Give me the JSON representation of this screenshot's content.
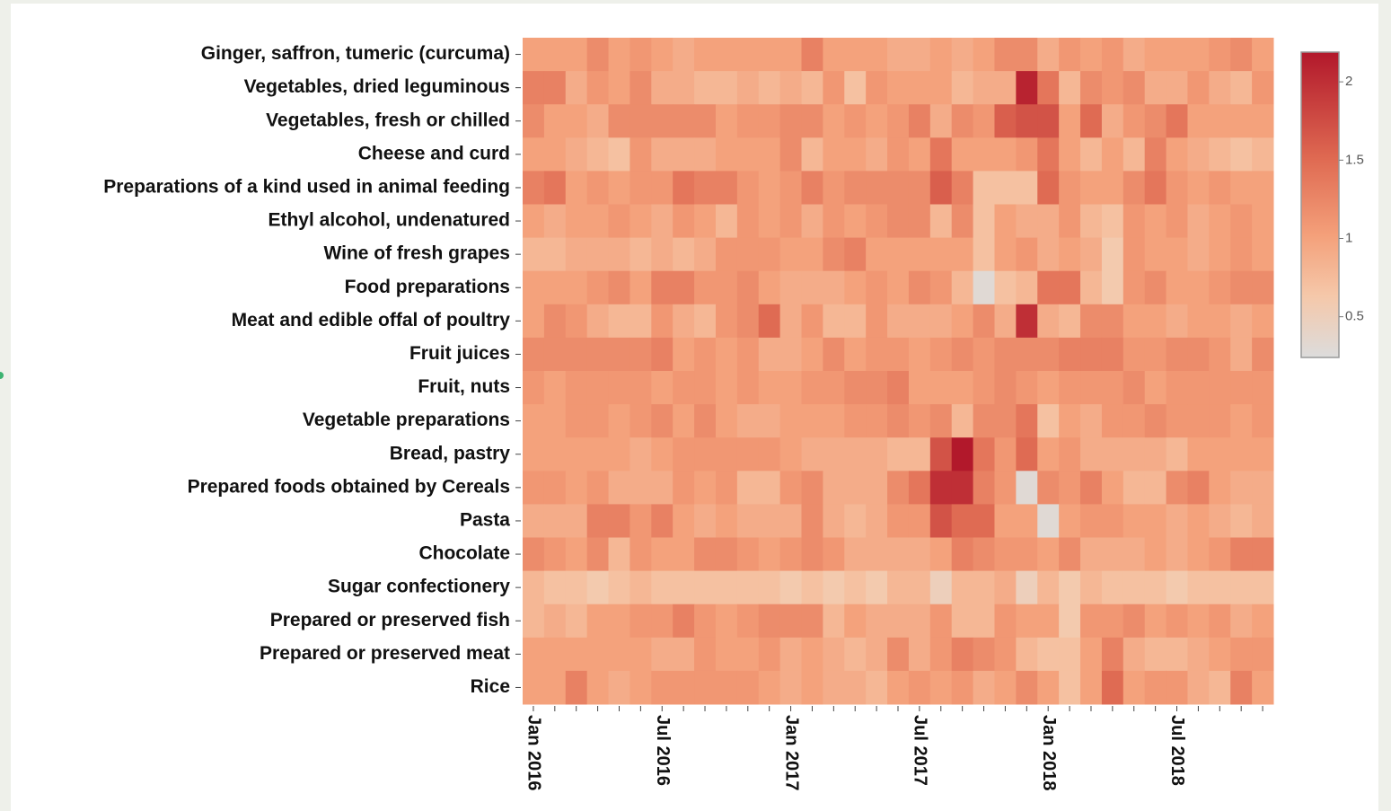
{
  "chart_data": {
    "type": "heatmap",
    "y": [
      "Ginger, saffron, tumeric (curcuma)",
      "Vegetables, dried leguminous",
      "Vegetables, fresh or chilled",
      "Cheese and curd",
      "Preparations of a kind used in animal feeding",
      "Ethyl alcohol, undenatured",
      "Wine of fresh grapes",
      "Food preparations",
      "Meat and edible offal of poultry",
      "Fruit juices",
      "Fruit, nuts",
      "Vegetable preparations",
      "Bread, pastry",
      "Prepared foods obtained by Cereals",
      "Pasta",
      "Chocolate",
      "Sugar confectionery",
      "Prepared or preserved fish",
      "Prepared or preserved meat",
      "Rice"
    ],
    "x": [
      "Jan 2016",
      null,
      null,
      null,
      null,
      null,
      "Jul 2016",
      null,
      null,
      null,
      null,
      null,
      "Jan 2017",
      null,
      null,
      null,
      null,
      null,
      "Jul 2017",
      null,
      null,
      null,
      null,
      null,
      "Jan 2018",
      null,
      null,
      null,
      null,
      null,
      "Jul 2018",
      null,
      null,
      null,
      null
    ],
    "z": [
      [
        1.0,
        1.0,
        1.0,
        1.2,
        1.0,
        1.1,
        1.0,
        0.9,
        1.0,
        1.0,
        1.0,
        1.0,
        1.0,
        1.3,
        1.0,
        1.0,
        1.0,
        0.9,
        0.9,
        1.0,
        0.9,
        1.0,
        1.2,
        1.2,
        0.9,
        1.1,
        1.0,
        1.1,
        0.9,
        1.0,
        1.0,
        1.0,
        1.1,
        1.2,
        1.0
      ],
      [
        1.3,
        1.3,
        0.9,
        1.1,
        1.0,
        1.2,
        0.9,
        0.9,
        0.8,
        0.8,
        0.9,
        0.8,
        0.9,
        0.8,
        1.1,
        0.7,
        1.1,
        1.0,
        1.0,
        1.0,
        0.8,
        0.9,
        0.9,
        2.1,
        1.4,
        0.8,
        1.2,
        1.1,
        1.2,
        0.9,
        0.9,
        1.1,
        0.9,
        0.8,
        1.1
      ],
      [
        1.2,
        1.0,
        1.0,
        0.9,
        1.2,
        1.2,
        1.2,
        1.2,
        1.2,
        1.0,
        1.1,
        1.1,
        1.2,
        1.2,
        1.0,
        1.1,
        1.0,
        1.1,
        1.3,
        0.9,
        1.2,
        1.1,
        1.6,
        1.7,
        1.7,
        1.0,
        1.5,
        0.9,
        1.1,
        1.2,
        1.4,
        1.0,
        1.0,
        1.0,
        1.0
      ],
      [
        1.0,
        1.0,
        0.9,
        0.8,
        0.7,
        1.1,
        0.9,
        0.9,
        0.9,
        1.0,
        1.0,
        1.0,
        1.2,
        0.8,
        1.0,
        1.0,
        0.9,
        1.1,
        1.0,
        1.4,
        1.0,
        1.0,
        1.0,
        1.1,
        1.4,
        1.0,
        0.8,
        1.0,
        0.8,
        1.3,
        1.0,
        0.9,
        0.8,
        0.7,
        0.8
      ],
      [
        1.3,
        1.4,
        1.0,
        1.1,
        1.0,
        1.1,
        1.1,
        1.4,
        1.3,
        1.3,
        1.1,
        1.0,
        1.1,
        1.3,
        1.1,
        1.2,
        1.2,
        1.2,
        1.2,
        1.6,
        1.3,
        0.7,
        0.7,
        0.7,
        1.5,
        1.1,
        1.0,
        1.0,
        1.2,
        1.4,
        1.1,
        1.0,
        1.1,
        1.0,
        1.0
      ],
      [
        1.0,
        0.9,
        1.0,
        1.0,
        1.1,
        1.0,
        0.9,
        1.1,
        1.0,
        0.8,
        1.1,
        1.0,
        1.1,
        0.9,
        1.1,
        1.0,
        1.1,
        1.2,
        1.2,
        0.8,
        1.2,
        0.7,
        1.0,
        0.9,
        0.9,
        1.1,
        0.8,
        0.7,
        1.1,
        1.0,
        1.1,
        0.9,
        1.0,
        1.1,
        1.0
      ],
      [
        0.8,
        0.8,
        0.9,
        0.9,
        0.9,
        0.8,
        0.9,
        0.8,
        0.9,
        1.1,
        1.1,
        1.1,
        1.0,
        1.0,
        1.2,
        1.3,
        1.0,
        1.0,
        1.0,
        1.0,
        1.0,
        0.7,
        1.0,
        1.1,
        0.9,
        1.0,
        0.9,
        0.6,
        1.1,
        1.0,
        1.0,
        0.9,
        1.0,
        1.1,
        1.0
      ],
      [
        1.0,
        1.0,
        1.0,
        1.1,
        1.2,
        1.0,
        1.3,
        1.3,
        1.1,
        1.1,
        1.2,
        1.0,
        0.9,
        0.9,
        0.9,
        1.0,
        1.1,
        1.0,
        1.2,
        1.1,
        0.8,
        0.3,
        0.7,
        0.8,
        1.4,
        1.4,
        0.8,
        0.6,
        1.1,
        1.2,
        1.0,
        1.0,
        1.1,
        1.2,
        1.2
      ],
      [
        1.0,
        1.2,
        1.1,
        0.9,
        0.8,
        0.8,
        1.1,
        0.9,
        0.8,
        1.1,
        1.2,
        1.5,
        0.9,
        1.1,
        0.8,
        0.8,
        1.1,
        0.9,
        0.9,
        0.9,
        1.0,
        1.2,
        0.9,
        2.0,
        0.9,
        0.8,
        1.2,
        1.2,
        1.0,
        1.0,
        0.9,
        1.0,
        1.0,
        0.9,
        1.0
      ],
      [
        1.2,
        1.2,
        1.2,
        1.2,
        1.2,
        1.2,
        1.3,
        1.0,
        1.1,
        1.0,
        1.1,
        0.9,
        0.9,
        1.0,
        1.2,
        1.0,
        1.1,
        1.1,
        1.0,
        1.1,
        1.2,
        1.1,
        1.2,
        1.2,
        1.2,
        1.3,
        1.3,
        1.3,
        1.1,
        1.1,
        1.2,
        1.2,
        1.1,
        0.9,
        1.2
      ],
      [
        1.1,
        1.0,
        1.1,
        1.1,
        1.1,
        1.1,
        1.0,
        1.1,
        1.1,
        1.0,
        1.1,
        1.0,
        1.0,
        1.1,
        1.1,
        1.2,
        1.2,
        1.3,
        1.0,
        1.0,
        1.0,
        1.1,
        1.2,
        1.1,
        1.0,
        1.1,
        1.1,
        1.1,
        1.2,
        1.0,
        1.1,
        1.1,
        1.1,
        1.1,
        1.1
      ],
      [
        1.0,
        1.0,
        1.1,
        1.1,
        1.0,
        1.1,
        1.2,
        1.0,
        1.2,
        1.0,
        0.9,
        0.9,
        1.0,
        1.0,
        1.0,
        1.1,
        1.1,
        1.2,
        1.1,
        1.2,
        0.8,
        1.2,
        1.2,
        1.4,
        0.7,
        1.0,
        0.9,
        1.1,
        1.1,
        1.2,
        1.1,
        1.1,
        1.1,
        1.0,
        1.1
      ],
      [
        1.0,
        1.0,
        1.0,
        1.0,
        1.0,
        0.9,
        1.0,
        1.1,
        1.1,
        1.1,
        1.1,
        1.1,
        1.0,
        0.9,
        0.9,
        0.9,
        0.9,
        0.8,
        0.8,
        1.7,
        2.2,
        1.4,
        1.1,
        1.5,
        1.0,
        1.1,
        0.9,
        0.9,
        0.9,
        0.9,
        0.8,
        1.0,
        1.0,
        1.0,
        1.0
      ],
      [
        1.1,
        1.1,
        1.0,
        1.1,
        0.9,
        0.9,
        0.9,
        1.1,
        1.0,
        1.1,
        0.8,
        0.8,
        1.1,
        1.2,
        0.9,
        0.9,
        0.9,
        1.2,
        1.4,
        2.0,
        2.0,
        1.3,
        1.1,
        0.3,
        1.2,
        1.1,
        1.3,
        1.0,
        0.8,
        0.8,
        1.2,
        1.3,
        1.0,
        0.9,
        0.9
      ],
      [
        0.9,
        0.9,
        0.9,
        1.3,
        1.3,
        1.1,
        1.3,
        1.0,
        0.9,
        1.0,
        0.9,
        0.9,
        0.9,
        1.2,
        0.9,
        0.8,
        0.9,
        1.1,
        1.1,
        1.7,
        1.5,
        1.5,
        1.0,
        1.0,
        0.3,
        1.0,
        1.1,
        1.1,
        1.0,
        1.0,
        0.9,
        1.0,
        0.9,
        0.8,
        0.9
      ],
      [
        1.2,
        1.1,
        1.0,
        1.2,
        0.8,
        1.1,
        1.0,
        1.0,
        1.2,
        1.2,
        1.1,
        1.0,
        1.1,
        1.2,
        1.1,
        0.9,
        0.9,
        0.9,
        0.9,
        1.0,
        1.3,
        1.2,
        1.1,
        1.1,
        1.0,
        1.2,
        0.9,
        0.9,
        0.9,
        1.0,
        0.9,
        1.0,
        1.1,
        1.3,
        1.3
      ],
      [
        0.8,
        0.7,
        0.7,
        0.6,
        0.7,
        0.8,
        0.7,
        0.7,
        0.7,
        0.7,
        0.7,
        0.7,
        0.6,
        0.7,
        0.6,
        0.7,
        0.6,
        0.8,
        0.8,
        0.5,
        0.8,
        0.8,
        0.9,
        0.5,
        0.8,
        0.6,
        0.8,
        0.7,
        0.7,
        0.7,
        0.6,
        0.7,
        0.7,
        0.7,
        0.7
      ],
      [
        0.8,
        0.9,
        0.8,
        1.0,
        1.0,
        1.1,
        1.1,
        1.3,
        1.1,
        1.0,
        1.1,
        1.2,
        1.2,
        1.2,
        0.8,
        1.0,
        0.9,
        0.9,
        0.9,
        1.1,
        0.8,
        0.8,
        1.1,
        1.0,
        1.0,
        0.6,
        1.1,
        1.1,
        1.2,
        1.0,
        1.1,
        1.0,
        1.1,
        0.9,
        1.0
      ],
      [
        1.0,
        1.0,
        1.0,
        1.0,
        1.0,
        1.0,
        0.9,
        0.9,
        1.1,
        1.0,
        1.0,
        1.1,
        0.9,
        1.0,
        0.9,
        0.8,
        0.9,
        1.2,
        0.9,
        1.1,
        1.3,
        1.2,
        1.1,
        0.8,
        0.7,
        0.7,
        1.0,
        1.3,
        0.9,
        0.8,
        0.8,
        0.9,
        1.0,
        1.1,
        1.1
      ],
      [
        1.0,
        1.0,
        1.3,
        1.0,
        0.9,
        1.0,
        1.1,
        1.1,
        1.1,
        1.1,
        1.1,
        1.0,
        0.9,
        1.0,
        0.9,
        0.9,
        0.8,
        1.0,
        1.1,
        1.0,
        1.1,
        0.9,
        1.0,
        1.2,
        1.0,
        0.7,
        1.0,
        1.5,
        1.0,
        1.1,
        1.1,
        0.9,
        0.8,
        1.3,
        1.0
      ]
    ],
    "zlim": [
      0.24,
      2.19
    ],
    "zticks": [
      0.5,
      1,
      1.5,
      2
    ],
    "colorscale": [
      [
        0,
        "#dcdcdc"
      ],
      [
        0.2,
        "#f5c8aa"
      ],
      [
        0.4,
        "#f4a07a"
      ],
      [
        0.65,
        "#df6a52"
      ],
      [
        1,
        "#b2182b"
      ]
    ]
  }
}
